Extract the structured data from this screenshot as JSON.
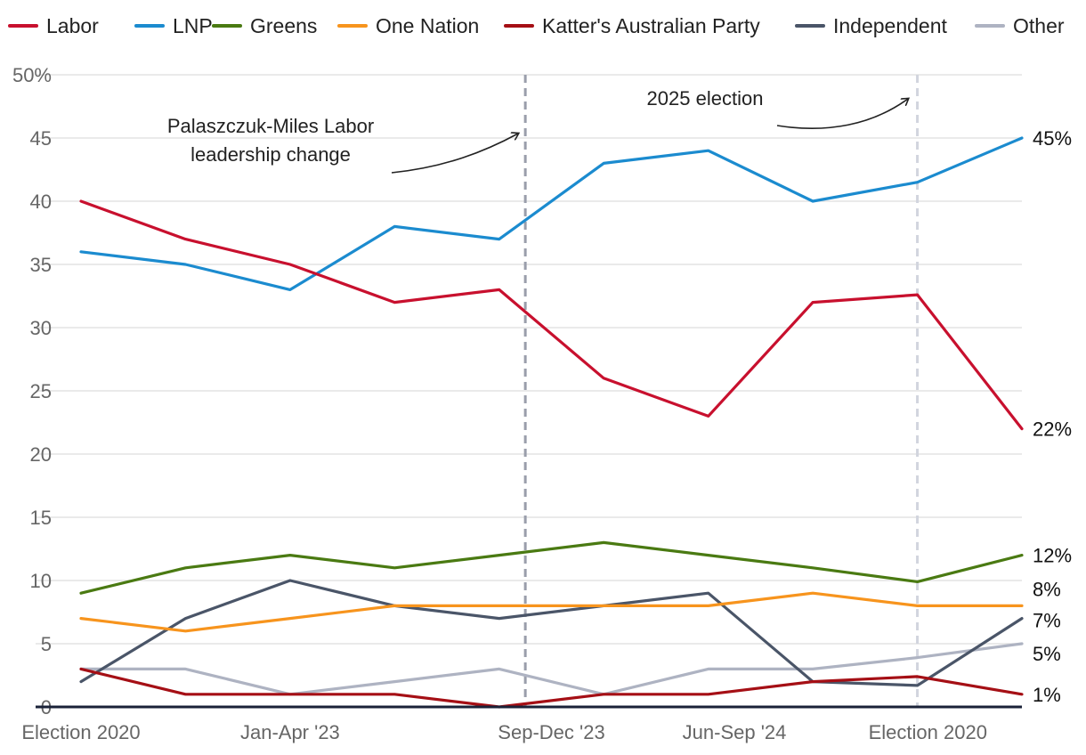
{
  "chart_data": {
    "type": "line",
    "title": "",
    "xlabel": "",
    "ylabel": "",
    "ylim": [
      0,
      50
    ],
    "y_ticks": [
      0,
      5,
      10,
      15,
      20,
      25,
      30,
      35,
      40,
      45,
      50
    ],
    "y_tick_labels": [
      "0",
      "5",
      "10",
      "15",
      "20",
      "25",
      "30",
      "35",
      "40",
      "45",
      "50%"
    ],
    "x": [
      "Election 2020",
      "",
      "Jan-Apr '23",
      "",
      "Sep-Dec '23",
      "",
      "Jun-Sep '24",
      "",
      "Election 2020",
      ""
    ],
    "x_tick_labels": [
      {
        "index": 0,
        "label": "Election 2020"
      },
      {
        "index": 2,
        "label": "Jan-Apr '23"
      },
      {
        "index": 4.5,
        "label": "Sep-Dec '23"
      },
      {
        "index": 6.25,
        "label": "Jun-Sep '24"
      },
      {
        "index": 8.1,
        "label": "Election 2020"
      }
    ],
    "grid": true,
    "legend_position": "top",
    "series": [
      {
        "name": "Labor",
        "color": "#c8102e",
        "x": [
          0,
          1,
          2,
          3,
          4,
          5,
          6,
          7,
          8,
          9
        ],
        "values": [
          40,
          37,
          35,
          32,
          33,
          26,
          23,
          32,
          32.6,
          22
        ],
        "end_label": "22%"
      },
      {
        "name": "LNP",
        "color": "#1b8bcf",
        "x": [
          0,
          1,
          2,
          3,
          4,
          5,
          6,
          7,
          8,
          9
        ],
        "values": [
          36,
          35,
          33,
          38,
          37,
          43,
          44,
          40,
          41.5,
          45
        ],
        "end_label": "45%"
      },
      {
        "name": "Greens",
        "color": "#4a7a12",
        "x": [
          0,
          1,
          2,
          3,
          4,
          5,
          6,
          7,
          8,
          9
        ],
        "values": [
          9,
          11,
          12,
          11,
          12,
          13,
          12,
          11,
          9.9,
          12
        ],
        "end_label": "12%"
      },
      {
        "name": "One Nation",
        "color": "#f7941d",
        "x": [
          0,
          1,
          2,
          3,
          4,
          5,
          6,
          7,
          8,
          9
        ],
        "values": [
          7,
          6,
          7,
          8,
          8,
          8,
          8,
          9,
          8,
          8
        ],
        "end_label": "8%"
      },
      {
        "name": "Katter's Australian Party",
        "color": "#a50f15",
        "x": [
          0,
          1,
          2,
          3,
          4,
          5,
          6,
          7,
          8,
          9
        ],
        "values": [
          3,
          1,
          1,
          1,
          0,
          1,
          1,
          2,
          2.4,
          1
        ],
        "end_label": "1%"
      },
      {
        "name": "Independent",
        "color": "#4a5568",
        "x": [
          0,
          1,
          2,
          3,
          4,
          5,
          6,
          7,
          8,
          9
        ],
        "values": [
          2,
          7,
          10,
          8,
          7,
          8,
          9,
          2,
          1.7,
          7
        ],
        "end_label": "7%"
      },
      {
        "name": "Other",
        "color": "#aeb3c2",
        "x": [
          0,
          1,
          2,
          3,
          4,
          5,
          6,
          7,
          8,
          9
        ],
        "values": [
          3,
          3,
          1,
          2,
          3,
          1,
          3,
          3,
          3.9,
          5
        ],
        "end_label": "5%"
      }
    ],
    "vertical_markers": [
      {
        "x": 4.25,
        "style": "dashed",
        "color": "#9a9eab",
        "label_lines": [
          "Palaszczuk-Miles Labor",
          "leadership change"
        ]
      },
      {
        "x": 8.0,
        "style": "dashed",
        "color": "#d2d5de",
        "label_lines": [
          "2025 election"
        ]
      }
    ]
  }
}
